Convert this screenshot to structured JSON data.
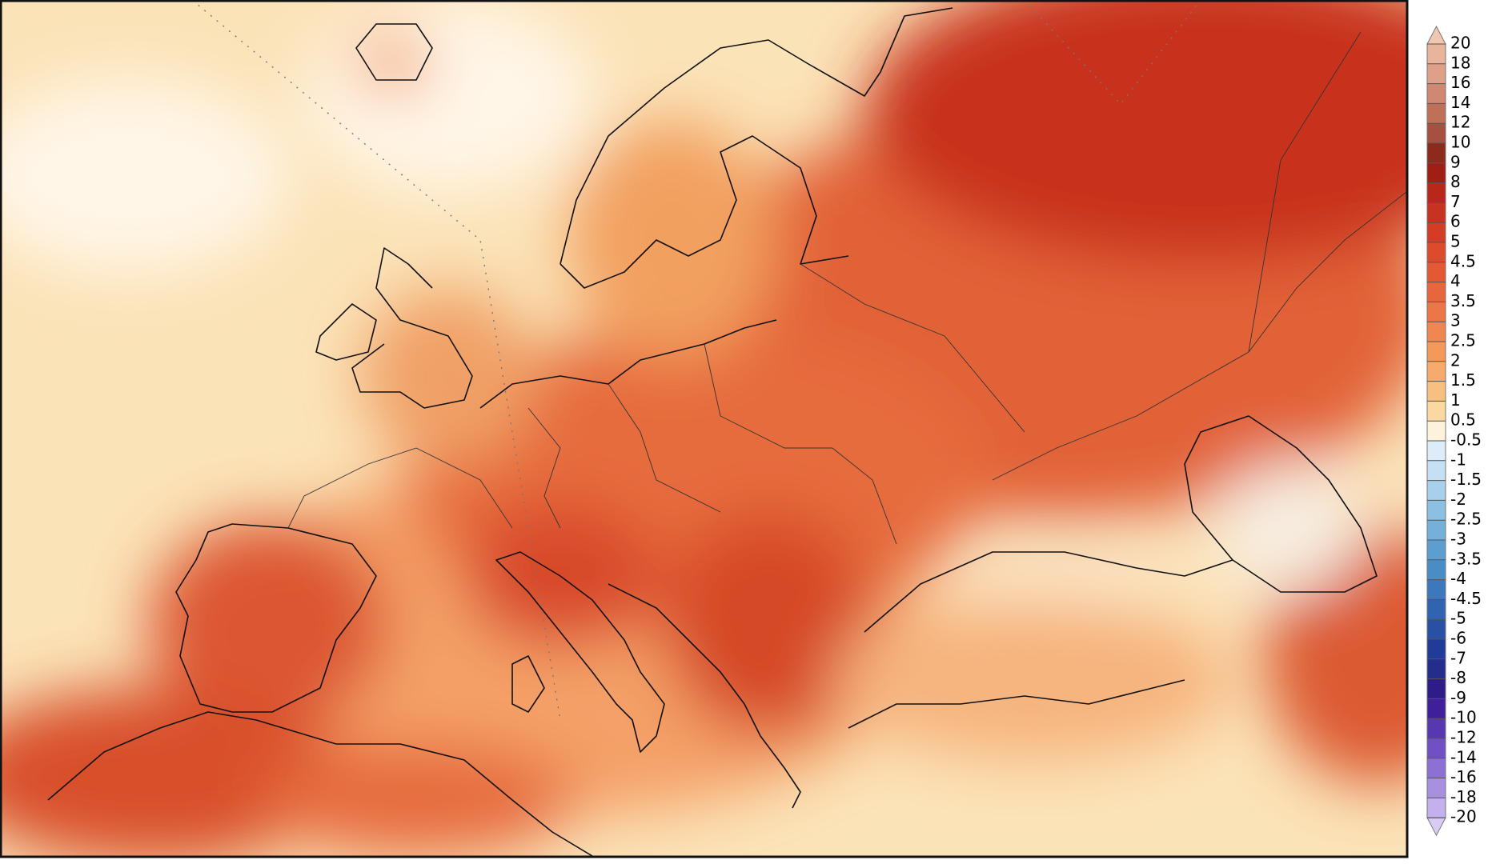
{
  "colorbar": {
    "labels": [
      20,
      18,
      16,
      14,
      12,
      10,
      9,
      8,
      7,
      6,
      5,
      4.5,
      4,
      3.5,
      3,
      2.5,
      2,
      1.5,
      1,
      0.5,
      -0.5,
      -1,
      -1.5,
      -2,
      -2.5,
      -3,
      -3.5,
      -4,
      -4.5,
      -5,
      -6,
      -7,
      -8,
      -9,
      -10,
      -12,
      -14,
      -16,
      -18,
      -20
    ],
    "colors": [
      "#f0c8b0",
      "#e8b49c",
      "#dea088",
      "#d08870",
      "#c07058",
      "#a85040",
      "#8c2a1c",
      "#a01e14",
      "#b82818",
      "#c83220",
      "#d43c26",
      "#de4a2c",
      "#e45834",
      "#e8663c",
      "#ec7646",
      "#f08650",
      "#f4985c",
      "#f6aa6c",
      "#f8c080",
      "#fad8a0",
      "#fdf3dc",
      "#dcecf8",
      "#c4e0f2",
      "#a8d0ea",
      "#8cc0e2",
      "#74b0da",
      "#5c9ed0",
      "#4a8cc6",
      "#3c78bc",
      "#3064b0",
      "#2850a4",
      "#203c98",
      "#242c8c",
      "#301c88",
      "#40209a",
      "#5838b0",
      "#7050c4",
      "#8c70d4",
      "#a890e0",
      "#c4b0ec",
      "#d8ccf4"
    ]
  }
}
